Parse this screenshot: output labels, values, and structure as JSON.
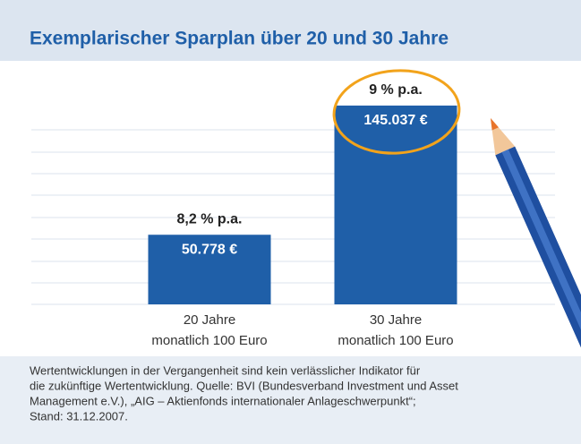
{
  "chart_data": {
    "type": "bar",
    "title": "Exemplarischer Sparplan über 20 und 30 Jahre",
    "categories": [
      "20 Jahre",
      "30 Jahre"
    ],
    "category_notes": [
      "monatlich 100 Euro",
      "monatlich 100 Euro"
    ],
    "annotations": [
      "8,2 % p.a.",
      "9 % p.a."
    ],
    "values": [
      50778,
      145037
    ],
    "value_labels": [
      "50.778 €",
      "145.037 €"
    ],
    "color": "#1f5fa8",
    "ylim": [
      0,
      160000
    ],
    "footnote": [
      "Wertentwicklungen in der Vergangenheit sind kein verlässlicher Indikator für",
      "die zukünftige Wertentwicklung. Quelle: BVI (Bundesverband Investment und Asset",
      "Management e.V.), „AIG – Aktienfonds internationaler Anlageschwerpunkt“;",
      "Stand: 31.12.2007."
    ]
  }
}
